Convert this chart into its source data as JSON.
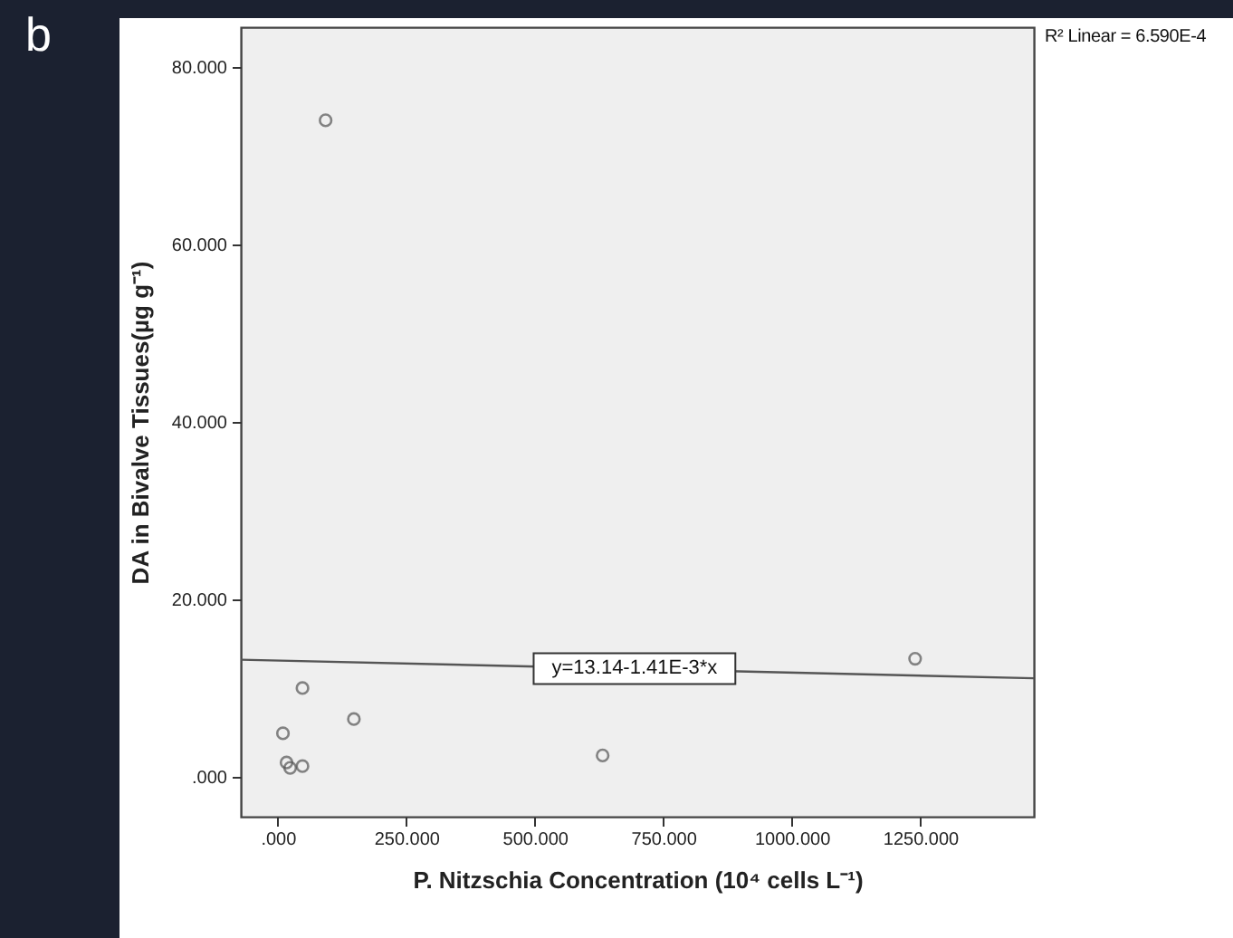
{
  "chart_data": {
    "type": "scatter",
    "xlabel": "P. Nitzschia Concentration (10⁴ cells L⁻¹)",
    "ylabel": "DA in Bivalve Tissues(µg g⁻¹)",
    "annotations": [
      "b",
      "R² Linear = 6.590E-4",
      {
        "text": "y=13.14-1.41E-3*x",
        "x": 694,
        "y": 12.2
      }
    ],
    "xlim": [
      -72,
      1471
    ],
    "ylim": [
      -4.5,
      84.5
    ],
    "xticks": [
      {
        "value": 0,
        "label": ".000"
      },
      {
        "value": 250,
        "label": "250.000"
      },
      {
        "value": 500,
        "label": "500.000"
      },
      {
        "value": 750,
        "label": "750.000"
      },
      {
        "value": 1000,
        "label": "1000.000"
      },
      {
        "value": 1250,
        "label": "1250.000"
      }
    ],
    "yticks": [
      {
        "value": 0,
        "label": ".000"
      },
      {
        "value": 20,
        "label": "20.000"
      },
      {
        "value": 40,
        "label": "40.000"
      },
      {
        "value": 60,
        "label": "60.000"
      },
      {
        "value": 80,
        "label": "80.000"
      }
    ],
    "grid": false,
    "series": [
      {
        "color": "#555555",
        "marker": "circle",
        "x": [
          93,
          48,
          10,
          17,
          24,
          48,
          148,
          632,
          1240
        ],
        "values": [
          74,
          10,
          4.9,
          1.6,
          1.0,
          1.2,
          6.5,
          2.4,
          13.3
        ]
      },
      {
        "type": "line",
        "color": "#555555",
        "marker": "none",
        "x": [
          -72,
          1471
        ],
        "values": [
          13.2,
          11.1
        ]
      }
    ]
  }
}
